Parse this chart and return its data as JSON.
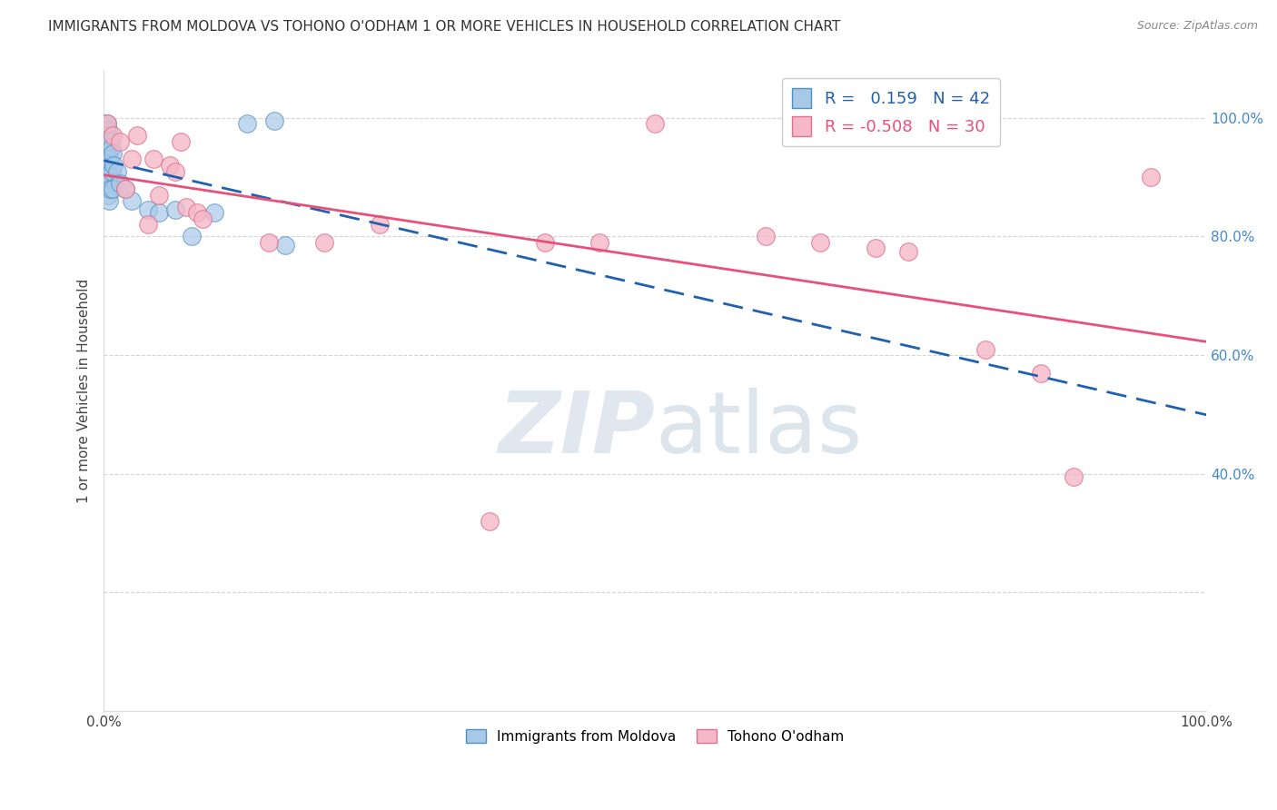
{
  "title": "IMMIGRANTS FROM MOLDOVA VS TOHONO O'ODHAM 1 OR MORE VEHICLES IN HOUSEHOLD CORRELATION CHART",
  "source_text": "Source: ZipAtlas.com",
  "ylabel": "1 or more Vehicles in Household",
  "xlim": [
    0.0,
    1.0
  ],
  "ylim": [
    0.0,
    1.08
  ],
  "x_ticks": [
    0.0,
    0.2,
    0.4,
    0.6,
    0.8,
    1.0
  ],
  "x_tick_labels": [
    "0.0%",
    "",
    "",
    "",
    "",
    "100.0%"
  ],
  "y_ticks": [
    0.0,
    0.2,
    0.4,
    0.6,
    0.8,
    1.0
  ],
  "y_tick_labels_right": [
    "",
    "",
    "40.0%",
    "60.0%",
    "80.0%",
    "100.0%"
  ],
  "legend_label1": "Immigrants from Moldova",
  "legend_label2": "Tohono O'odham",
  "moldova_color": "#a8c8e8",
  "tohono_color": "#f4b8c8",
  "moldova_line_color": "#2060b0",
  "tohono_line_color": "#e8507a",
  "background_color": "#ffffff",
  "grid_color": "#d0d0d0",
  "moldova_R": 0.159,
  "moldova_N": 42,
  "tohono_R": -0.508,
  "tohono_N": 30,
  "moldova_x": [
    0.001,
    0.001,
    0.001,
    0.002,
    0.002,
    0.002,
    0.002,
    0.002,
    0.003,
    0.003,
    0.003,
    0.003,
    0.003,
    0.003,
    0.004,
    0.004,
    0.004,
    0.004,
    0.005,
    0.005,
    0.005,
    0.005,
    0.006,
    0.006,
    0.006,
    0.007,
    0.007,
    0.008,
    0.008,
    0.009,
    0.012,
    0.015,
    0.02,
    0.025,
    0.04,
    0.05,
    0.065,
    0.08,
    0.1,
    0.13,
    0.155,
    0.165
  ],
  "moldova_y": [
    0.97,
    0.95,
    0.93,
    0.99,
    0.98,
    0.96,
    0.94,
    0.92,
    0.99,
    0.97,
    0.95,
    0.93,
    0.91,
    0.89,
    0.98,
    0.96,
    0.94,
    0.87,
    0.97,
    0.95,
    0.9,
    0.86,
    0.96,
    0.93,
    0.88,
    0.95,
    0.91,
    0.94,
    0.88,
    0.92,
    0.91,
    0.89,
    0.88,
    0.86,
    0.845,
    0.84,
    0.845,
    0.8,
    0.84,
    0.99,
    0.995,
    0.785
  ],
  "tohono_x": [
    0.003,
    0.008,
    0.015,
    0.02,
    0.025,
    0.03,
    0.04,
    0.045,
    0.05,
    0.06,
    0.065,
    0.07,
    0.075,
    0.085,
    0.09,
    0.15,
    0.2,
    0.25,
    0.35,
    0.4,
    0.45,
    0.5,
    0.6,
    0.65,
    0.7,
    0.73,
    0.8,
    0.85,
    0.88,
    0.95
  ],
  "tohono_y": [
    0.99,
    0.97,
    0.96,
    0.88,
    0.93,
    0.97,
    0.82,
    0.93,
    0.87,
    0.92,
    0.91,
    0.96,
    0.85,
    0.84,
    0.83,
    0.79,
    0.79,
    0.82,
    0.32,
    0.79,
    0.79,
    0.99,
    0.8,
    0.79,
    0.78,
    0.775,
    0.61,
    0.57,
    0.395,
    0.9
  ],
  "watermark_zip": "ZIP",
  "watermark_atlas": "atlas",
  "watermark_zip_color": "#c8d8e8",
  "watermark_atlas_color": "#b8c8d8"
}
